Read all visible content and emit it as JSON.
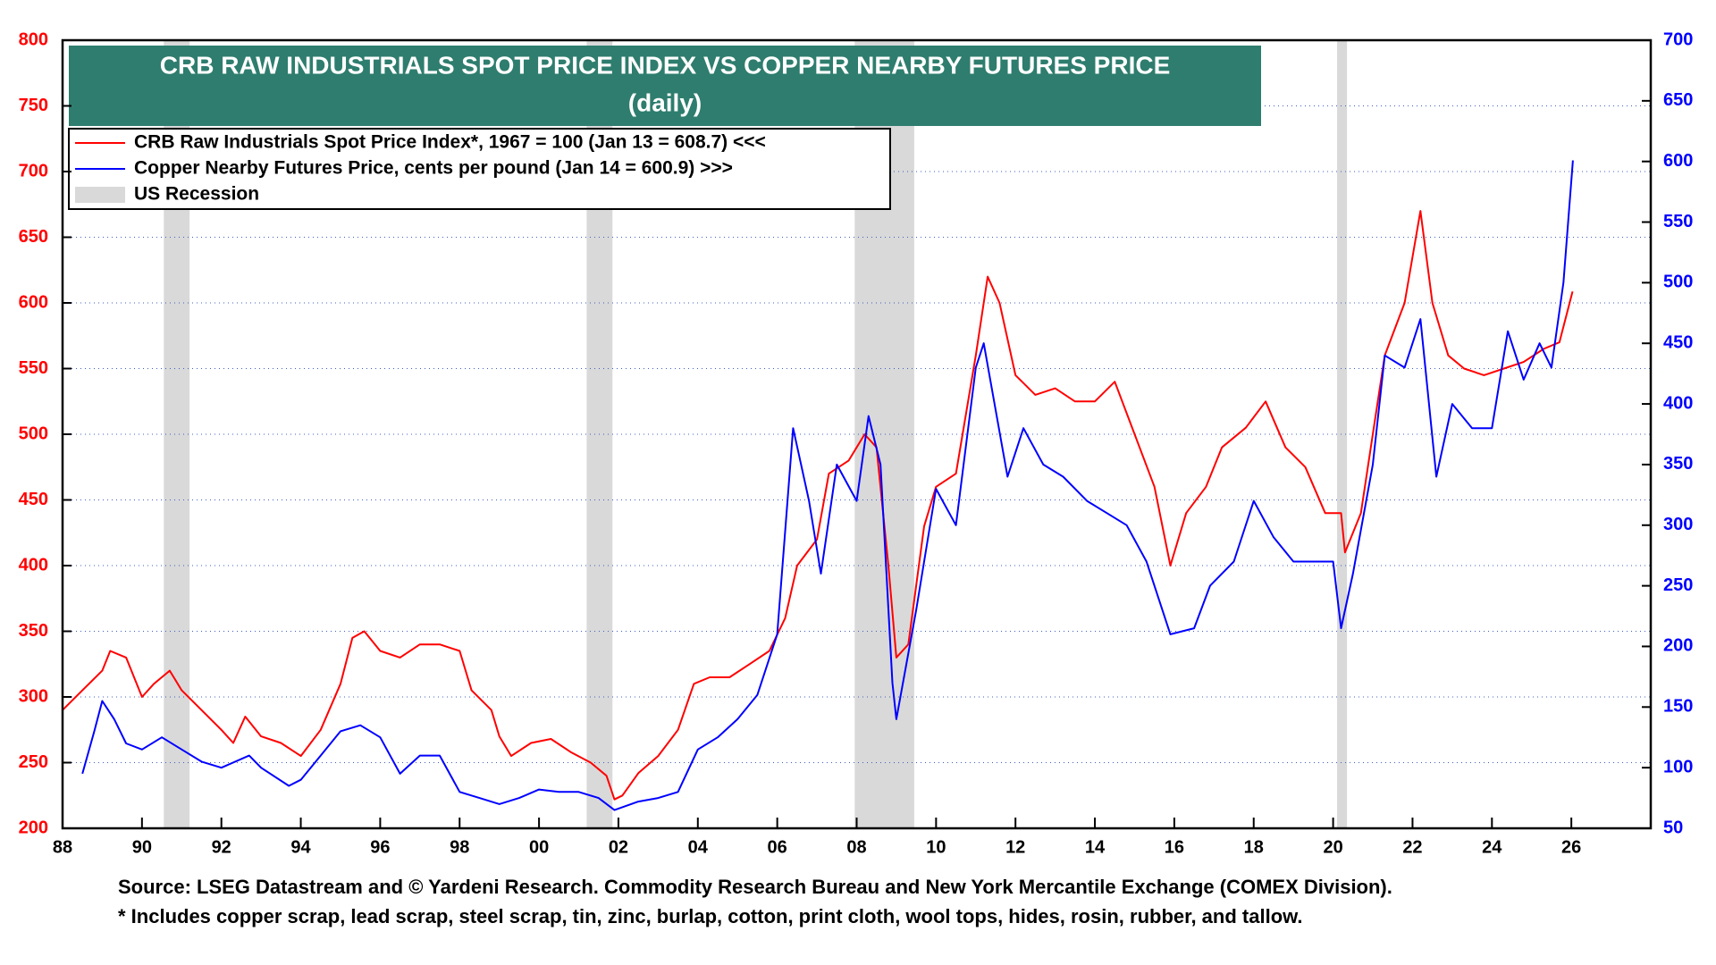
{
  "chart_data": {
    "type": "line",
    "title": "CRB RAW INDUSTRIALS SPOT PRICE INDEX VS COPPER NEARBY FUTURES PRICE",
    "subtitle": "(daily)",
    "xlim": [
      1988,
      2028
    ],
    "xticks": [
      {
        "value": 1988,
        "label": "88"
      },
      {
        "value": 1990,
        "label": "90"
      },
      {
        "value": 1992,
        "label": "92"
      },
      {
        "value": 1994,
        "label": "94"
      },
      {
        "value": 1996,
        "label": "96"
      },
      {
        "value": 1998,
        "label": "98"
      },
      {
        "value": 2000,
        "label": "00"
      },
      {
        "value": 2002,
        "label": "02"
      },
      {
        "value": 2004,
        "label": "04"
      },
      {
        "value": 2006,
        "label": "06"
      },
      {
        "value": 2008,
        "label": "08"
      },
      {
        "value": 2010,
        "label": "10"
      },
      {
        "value": 2012,
        "label": "12"
      },
      {
        "value": 2014,
        "label": "14"
      },
      {
        "value": 2016,
        "label": "16"
      },
      {
        "value": 2018,
        "label": "18"
      },
      {
        "value": 2020,
        "label": "20"
      },
      {
        "value": 2022,
        "label": "22"
      },
      {
        "value": 2024,
        "label": "24"
      },
      {
        "value": 2026,
        "label": "26"
      }
    ],
    "ylim": [
      200,
      800
    ],
    "yticks": [
      200,
      250,
      300,
      350,
      400,
      450,
      500,
      550,
      600,
      650,
      700,
      750,
      800
    ],
    "y2lim": [
      50,
      700
    ],
    "y2ticks": [
      50,
      100,
      150,
      200,
      250,
      300,
      350,
      400,
      450,
      500,
      550,
      600,
      650,
      700
    ],
    "grid": true,
    "legend": "upper left",
    "series": [
      {
        "name": "CRB Raw Industrials Spot Price Index*, 1967 = 100 (Jan 13 = 608.7) <<<",
        "color": "#ff0000",
        "axis": "y",
        "x": [
          1988.0,
          1988.5,
          1989.0,
          1989.2,
          1989.6,
          1990.0,
          1990.3,
          1990.7,
          1991.0,
          1991.5,
          1992.0,
          1992.3,
          1992.6,
          1993.0,
          1993.5,
          1994.0,
          1994.5,
          1995.0,
          1995.3,
          1995.6,
          1996.0,
          1996.5,
          1997.0,
          1997.5,
          1998.0,
          1998.3,
          1998.8,
          1999.0,
          1999.3,
          1999.8,
          2000.3,
          2000.8,
          2001.3,
          2001.7,
          2001.9,
          2002.1,
          2002.5,
          2003.0,
          2003.5,
          2003.9,
          2004.3,
          2004.8,
          2005.3,
          2005.8,
          2006.2,
          2006.5,
          2007.0,
          2007.3,
          2007.8,
          2008.2,
          2008.5,
          2008.8,
          2009.0,
          2009.3,
          2009.7,
          2010.0,
          2010.5,
          2011.0,
          2011.3,
          2011.6,
          2012.0,
          2012.5,
          2013.0,
          2013.5,
          2014.0,
          2014.5,
          2015.0,
          2015.5,
          2015.9,
          2016.3,
          2016.8,
          2017.2,
          2017.8,
          2018.3,
          2018.8,
          2019.3,
          2019.8,
          2020.2,
          2020.3,
          2020.7,
          2021.0,
          2021.3,
          2021.8,
          2022.2,
          2022.5,
          2022.9,
          2023.3,
          2023.8,
          2024.3,
          2024.8,
          2025.3,
          2025.7,
          2026.03
        ],
        "values": [
          290,
          305,
          320,
          335,
          330,
          300,
          310,
          320,
          305,
          290,
          275,
          265,
          285,
          270,
          265,
          255,
          275,
          310,
          345,
          350,
          335,
          330,
          340,
          340,
          335,
          305,
          290,
          270,
          255,
          265,
          268,
          258,
          250,
          240,
          222,
          225,
          242,
          255,
          275,
          310,
          315,
          315,
          325,
          335,
          360,
          400,
          420,
          470,
          480,
          500,
          490,
          400,
          330,
          340,
          430,
          460,
          470,
          560,
          620,
          600,
          545,
          530,
          535,
          525,
          525,
          540,
          500,
          460,
          400,
          440,
          460,
          490,
          505,
          525,
          490,
          475,
          440,
          440,
          410,
          440,
          500,
          560,
          600,
          670,
          600,
          560,
          550,
          545,
          550,
          555,
          565,
          570,
          608.7
        ]
      },
      {
        "name": "Copper Nearby Futures Price, cents per pound (Jan 14 = 600.9) >>>",
        "color": "#0000ff",
        "axis": "y2",
        "x": [
          1988.5,
          1988.8,
          1989.0,
          1989.3,
          1989.6,
          1990.0,
          1990.5,
          1991.0,
          1991.5,
          1992.0,
          1992.7,
          1993.0,
          1993.7,
          1994.0,
          1994.5,
          1995.0,
          1995.5,
          1996.0,
          1996.5,
          1997.0,
          1997.5,
          1998.0,
          1998.5,
          1999.0,
          1999.5,
          2000.0,
          2000.5,
          2001.0,
          2001.5,
          2001.9,
          2002.5,
          2003.0,
          2003.5,
          2004.0,
          2004.5,
          2005.0,
          2005.5,
          2006.0,
          2006.4,
          2006.8,
          2007.1,
          2007.5,
          2008.0,
          2008.3,
          2008.6,
          2008.9,
          2009.0,
          2009.5,
          2010.0,
          2010.5,
          2011.0,
          2011.2,
          2011.8,
          2012.2,
          2012.7,
          2013.2,
          2013.8,
          2014.3,
          2014.8,
          2015.3,
          2015.9,
          2016.5,
          2016.9,
          2017.5,
          2018.0,
          2018.5,
          2019.0,
          2019.5,
          2020.0,
          2020.2,
          2020.5,
          2021.0,
          2021.3,
          2021.8,
          2022.2,
          2022.6,
          2023.0,
          2023.5,
          2024.0,
          2024.4,
          2024.8,
          2025.2,
          2025.5,
          2025.8,
          2026.04
        ],
        "values": [
          95,
          130,
          155,
          140,
          120,
          115,
          125,
          115,
          105,
          100,
          110,
          100,
          85,
          90,
          110,
          130,
          135,
          125,
          95,
          110,
          110,
          80,
          75,
          70,
          75,
          82,
          80,
          80,
          75,
          65,
          72,
          75,
          80,
          115,
          125,
          140,
          160,
          210,
          380,
          320,
          260,
          350,
          320,
          390,
          350,
          170,
          140,
          230,
          330,
          300,
          430,
          450,
          340,
          380,
          350,
          340,
          320,
          310,
          300,
          270,
          210,
          215,
          250,
          270,
          320,
          290,
          270,
          270,
          270,
          215,
          260,
          350,
          440,
          430,
          470,
          340,
          400,
          380,
          380,
          460,
          420,
          450,
          430,
          500,
          600.9
        ]
      }
    ],
    "shading": {
      "name": "US Recession",
      "color": "#d9d9d9",
      "periods": [
        [
          1990.55,
          1991.2
        ],
        [
          2001.2,
          2001.85
        ],
        [
          2007.95,
          2009.45
        ],
        [
          2020.1,
          2020.35
        ]
      ]
    },
    "source": "Source: LSEG Datastream and © Yardeni Research. Commodity Research Bureau and New York Mercantile Exchange (COMEX Division).",
    "note": "* Includes copper scrap, lead scrap, steel scrap, tin, zinc, burlap, cotton, print cloth, wool tops, hides, rosin, rubber, and tallow."
  }
}
